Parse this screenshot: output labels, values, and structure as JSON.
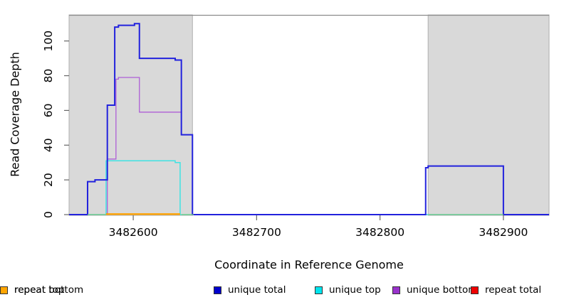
{
  "chart_data": {
    "type": "line",
    "title": "",
    "xlabel": "Coordinate in Reference Genome",
    "ylabel": "Read Coverage Depth",
    "xlim": [
      3482548,
      3482937
    ],
    "ylim": [
      0,
      115
    ],
    "x_ticks": [
      3482600,
      3482700,
      3482800,
      3482900
    ],
    "y_ticks": [
      0,
      20,
      40,
      60,
      80,
      100
    ],
    "grid": false,
    "legend_position": "bottom",
    "shaded_regions": [
      {
        "x1": 3482548,
        "x2": 3482648,
        "color": "#D9D9D9",
        "border": "#AFAFAF"
      },
      {
        "x1": 3482839,
        "x2": 3482937,
        "color": "#D9D9D9",
        "border": "#AFAFAF"
      }
    ],
    "plot_border_color": "#8C8C8C",
    "tick_color": "#666666",
    "series": [
      {
        "name": "unique bottom",
        "color": "#AE5FD6",
        "width": 1.3,
        "steps": [
          [
            3482548,
            0
          ],
          [
            3482579,
            32
          ],
          [
            3482586,
            78
          ],
          [
            3482588,
            79
          ],
          [
            3482605,
            59
          ],
          [
            3482639,
            46
          ],
          [
            3482648,
            0
          ]
        ],
        "end": 3482937
      },
      {
        "name": "unique top",
        "color": "#3FE3E3",
        "width": 1.5,
        "steps": [
          [
            3482548,
            0
          ],
          [
            3482578,
            31
          ],
          [
            3482634,
            30
          ],
          [
            3482638,
            0
          ]
        ],
        "end": 3482937
      },
      {
        "name": "unique total",
        "color": "#2222DD",
        "width": 2,
        "steps": [
          [
            3482548,
            0
          ],
          [
            3482563,
            19
          ],
          [
            3482569,
            20
          ],
          [
            3482579,
            63
          ],
          [
            3482585,
            108
          ],
          [
            3482588,
            109
          ],
          [
            3482601,
            110
          ],
          [
            3482605,
            90
          ],
          [
            3482634,
            89
          ],
          [
            3482639,
            46
          ],
          [
            3482648,
            0
          ],
          [
            3482837,
            27
          ],
          [
            3482839,
            28
          ],
          [
            3482900,
            0
          ]
        ],
        "end": 3482937
      },
      {
        "name": "baseline unlabeled green",
        "color": "#7DCB7D",
        "width": 1.3,
        "segments": [
          [
            3482563,
            3482578,
            0
          ],
          [
            3482639,
            3482649,
            0
          ],
          [
            3482839,
            3482900,
            0
          ]
        ]
      },
      {
        "name": "repeat total",
        "color": "#EE0000",
        "width": 1.5,
        "segments": []
      },
      {
        "name": "repeat top",
        "color": "#FFFF00",
        "width": 1.5,
        "segments": []
      },
      {
        "name": "repeat bottom",
        "color": "#FFA200",
        "width": 2.4,
        "segments": [
          [
            3482578,
            3482638,
            0.3
          ]
        ]
      }
    ]
  },
  "legend": {
    "items": [
      {
        "label": "unique total",
        "color": "#0000CD"
      },
      {
        "label": "unique top",
        "color": "#00E5EE"
      },
      {
        "label": "unique bottom",
        "color": "#9932CC"
      },
      {
        "label": "repeat total",
        "color": "#EE0000"
      },
      {
        "label": "repeat top",
        "color": "#FFFF00"
      },
      {
        "label": "repeat bottom",
        "color": "#FFA500"
      }
    ]
  }
}
